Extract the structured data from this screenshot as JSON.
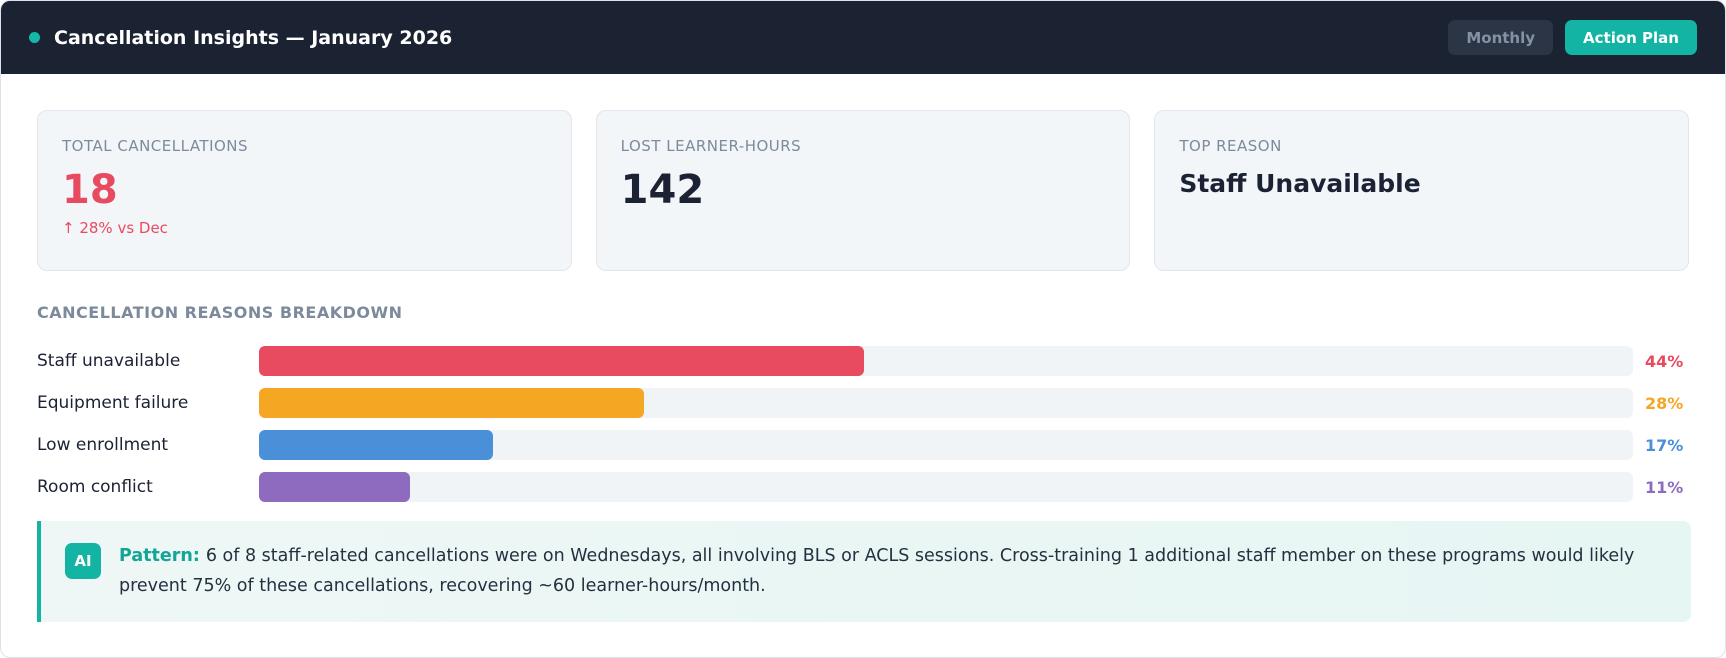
{
  "header": {
    "title": "Cancellation Insights — January 2026",
    "buttons": [
      "Monthly",
      "Action Plan"
    ]
  },
  "kpis": [
    {
      "label": "TOTAL CANCELLATIONS",
      "value": 18,
      "note": "↑ 28% vs Dec"
    },
    {
      "label": "LOST LEARNER-HOURS",
      "value": 142
    },
    {
      "label": "TOP REASON",
      "value": "Staff Unavailable"
    }
  ],
  "breakdown": {
    "type": "bar",
    "title": "CANCELLATION REASONS BREAKDOWN",
    "categories": [
      "Staff unavailable",
      "Equipment failure",
      "Low enrollment",
      "Room conflict"
    ],
    "values": [
      44,
      28,
      17,
      11
    ],
    "value_labels": [
      "44%",
      "28%",
      "17%",
      "11%"
    ],
    "colors": [
      "#e84a5f",
      "#f5a623",
      "#4a90d9",
      "#8e6bbf"
    ],
    "xlim": [
      0,
      100
    ]
  },
  "insight": {
    "badge": "AI",
    "lead": "Pattern:",
    "text": "6 of 8 staff-related cancellations were on Wednesdays, all involving BLS or ACLS sessions. Cross-training 1 additional staff member on these programs would likely prevent 75% of these cancellations, recovering ~60 learner-hours/month."
  }
}
